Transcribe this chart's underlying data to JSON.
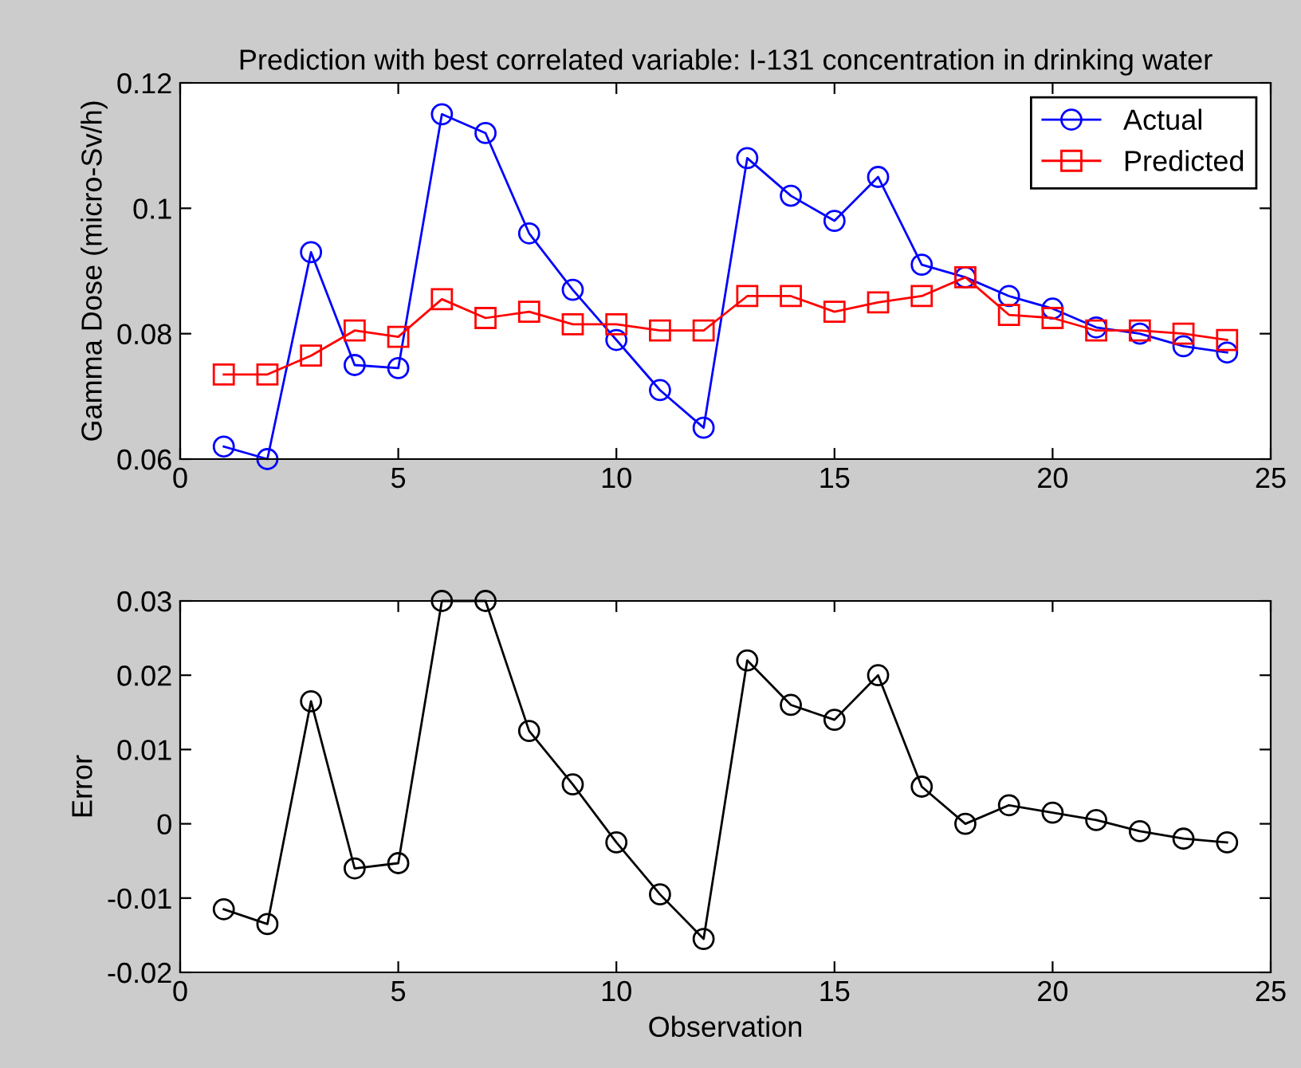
{
  "chart_data": [
    {
      "type": "line",
      "title": "Prediction with best correlated variable: I-131 concentration in drinking water",
      "ylabel": "Gamma Dose (micro-Sv/h)",
      "x": [
        1,
        2,
        3,
        4,
        5,
        6,
        7,
        8,
        9,
        10,
        11,
        12,
        13,
        14,
        15,
        16,
        17,
        18,
        19,
        20,
        21,
        22,
        23,
        24
      ],
      "series": [
        {
          "name": "Actual",
          "color": "#0000ff",
          "marker": "circle",
          "values": [
            0.062,
            0.06,
            0.093,
            0.075,
            0.0745,
            0.115,
            0.112,
            0.096,
            0.087,
            0.079,
            0.071,
            0.065,
            0.108,
            0.102,
            0.098,
            0.105,
            0.091,
            0.089,
            0.086,
            0.084,
            0.081,
            0.08,
            0.078,
            0.077
          ]
        },
        {
          "name": "Predicted",
          "color": "#ff0000",
          "marker": "square",
          "values": [
            0.0735,
            0.0735,
            0.0765,
            0.0805,
            0.0795,
            0.0855,
            0.0825,
            0.0835,
            0.0815,
            0.0815,
            0.0805,
            0.0805,
            0.086,
            0.086,
            0.0835,
            0.085,
            0.086,
            0.089,
            0.083,
            0.0825,
            0.0805,
            0.0805,
            0.08,
            0.079
          ]
        }
      ],
      "xlim": [
        0,
        25
      ],
      "xticks": [
        0,
        5,
        10,
        15,
        20,
        25
      ],
      "ylim": [
        0.06,
        0.12
      ],
      "yticks": [
        0.06,
        0.08,
        0.1,
        0.12
      ],
      "legend": "top right",
      "grid": false
    },
    {
      "type": "line",
      "xlabel": "Observation",
      "ylabel": "Error",
      "x": [
        1,
        2,
        3,
        4,
        5,
        6,
        7,
        8,
        9,
        10,
        11,
        12,
        13,
        14,
        15,
        16,
        17,
        18,
        19,
        20,
        21,
        22,
        23,
        24
      ],
      "series": [
        {
          "color": "#000000",
          "marker": "circle",
          "values": [
            -0.0115,
            -0.0135,
            0.0165,
            -0.006,
            -0.0053,
            0.03,
            0.03,
            0.0125,
            0.0053,
            -0.0025,
            -0.0095,
            -0.0155,
            0.022,
            0.016,
            0.014,
            0.02,
            0.005,
            0.0,
            0.0025,
            0.0015,
            0.0005,
            -0.001,
            -0.002,
            -0.0025
          ]
        }
      ],
      "xlim": [
        0,
        25
      ],
      "xticks": [
        0,
        5,
        10,
        15,
        20,
        25
      ],
      "ylim": [
        -0.02,
        0.03
      ],
      "yticks": [
        -0.02,
        -0.01,
        0,
        0.01,
        0.02,
        0.03
      ],
      "grid": false
    }
  ]
}
